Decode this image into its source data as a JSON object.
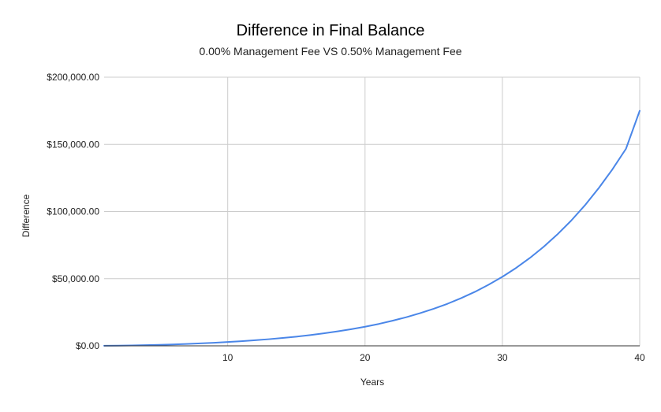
{
  "chart_data": {
    "type": "line",
    "title": "Difference in Final Balance",
    "subtitle": "0.00% Management Fee VS 0.50% Management Fee",
    "xlabel": "Years",
    "ylabel": "Difference",
    "xlim": [
      1,
      40
    ],
    "ylim": [
      0,
      200000
    ],
    "xticks": [
      10,
      20,
      30,
      40
    ],
    "xtick_labels": [
      "10",
      "20",
      "30",
      "40"
    ],
    "yticks": [
      0,
      50000,
      100000,
      150000,
      200000
    ],
    "ytick_labels": [
      "$0.00",
      "$50,000.00",
      "$100,000.00",
      "$150,000.00",
      "$200,000.00"
    ],
    "grid": true,
    "legend": "none",
    "series": [
      {
        "color": "#4a86e8",
        "x": [
          1,
          2,
          3,
          4,
          5,
          6,
          7,
          8,
          9,
          10,
          11,
          12,
          13,
          14,
          15,
          16,
          17,
          18,
          19,
          20,
          21,
          22,
          23,
          24,
          25,
          26,
          27,
          28,
          29,
          30,
          31,
          32,
          33,
          34,
          35,
          36,
          37,
          38,
          39,
          40
        ],
        "values": [
          50,
          150,
          300,
          500,
          750,
          1050,
          1400,
          1800,
          2300,
          2850,
          3450,
          4150,
          4950,
          5850,
          6850,
          8000,
          9300,
          10800,
          12400,
          14200,
          16300,
          18700,
          21300,
          24300,
          27600,
          31300,
          35500,
          40200,
          45500,
          51400,
          58000,
          65400,
          73700,
          82900,
          93100,
          104500,
          117200,
          131200,
          146700,
          175000
        ]
      }
    ]
  }
}
